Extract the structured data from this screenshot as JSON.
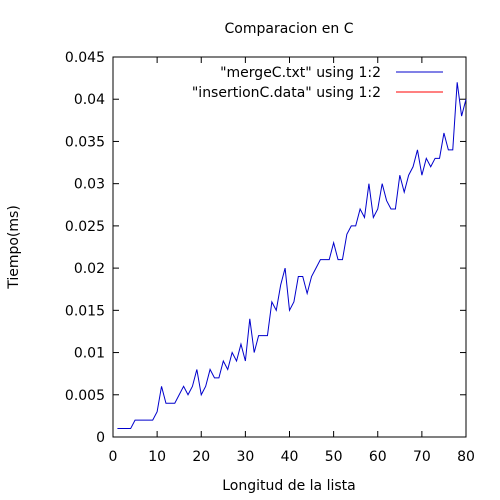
{
  "chart_data": {
    "type": "line",
    "title": "Comparacion en C",
    "xlabel": "Longitud de la lista",
    "ylabel": "Tiempo(ms)",
    "xlim": [
      0,
      80
    ],
    "ylim": [
      0,
      0.045
    ],
    "x_ticks": [
      "0",
      "10",
      "20",
      "30",
      "40",
      "50",
      "60",
      "70",
      "80"
    ],
    "y_ticks": [
      "0",
      "0.005",
      "0.01",
      "0.015",
      "0.02",
      "0.025",
      "0.03",
      "0.035",
      "0.04",
      "0.045"
    ],
    "grid": false,
    "legend_position": "top-right",
    "series": [
      {
        "name": "\"mergeC.txt\" using 1:2",
        "color": "#0000cc",
        "x": [
          1,
          2,
          3,
          4,
          5,
          6,
          7,
          8,
          9,
          10,
          11,
          12,
          13,
          14,
          15,
          16,
          17,
          18,
          19,
          20,
          21,
          22,
          23,
          24,
          25,
          26,
          27,
          28,
          29,
          30,
          31,
          32,
          33,
          34,
          35,
          36,
          37,
          38,
          39,
          40,
          41,
          42,
          43,
          44,
          45,
          46,
          47,
          48,
          49,
          50,
          51,
          52,
          53,
          54,
          55,
          56,
          57,
          58,
          59,
          60,
          61,
          62,
          63,
          64,
          65,
          66,
          67,
          68,
          69,
          70,
          71,
          72,
          73,
          74,
          75,
          76,
          77,
          78,
          79,
          80
        ],
        "y": [
          0.001,
          0.001,
          0.001,
          0.001,
          0.002,
          0.002,
          0.002,
          0.002,
          0.002,
          0.003,
          0.006,
          0.004,
          0.004,
          0.004,
          0.005,
          0.006,
          0.005,
          0.006,
          0.008,
          0.005,
          0.006,
          0.008,
          0.007,
          0.007,
          0.009,
          0.008,
          0.01,
          0.009,
          0.011,
          0.009,
          0.014,
          0.01,
          0.012,
          0.012,
          0.012,
          0.016,
          0.015,
          0.018,
          0.02,
          0.015,
          0.016,
          0.019,
          0.019,
          0.017,
          0.019,
          0.02,
          0.021,
          0.021,
          0.021,
          0.023,
          0.021,
          0.021,
          0.024,
          0.025,
          0.025,
          0.027,
          0.026,
          0.03,
          0.026,
          0.027,
          0.03,
          0.028,
          0.027,
          0.027,
          0.031,
          0.029,
          0.031,
          0.032,
          0.034,
          0.031,
          0.033,
          0.032,
          0.033,
          0.033,
          0.036,
          0.034,
          0.034,
          0.042,
          0.038,
          0.04
        ]
      },
      {
        "name": "\"insertionC.data\" using 1:2",
        "color": "#ff0000",
        "x": [],
        "y": []
      }
    ]
  }
}
